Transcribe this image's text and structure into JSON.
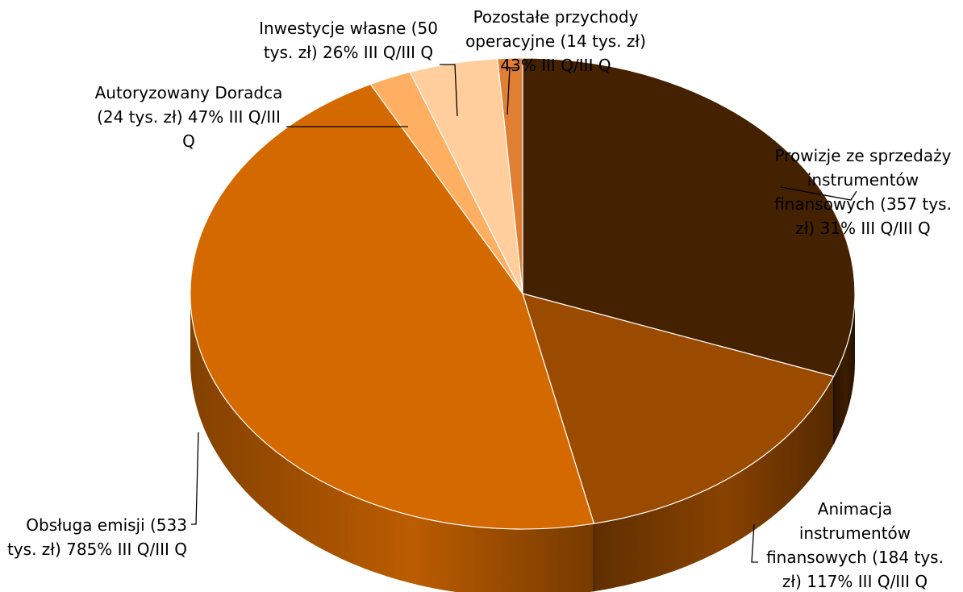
{
  "chart_data": {
    "type": "pie",
    "title": "",
    "style": "3d",
    "start_angle_deg": 0,
    "direction": "clockwise",
    "unit": "tys. zł",
    "slices": [
      {
        "name": "Prowizje ze sprzedaży instrumentów finansowych",
        "value": 357,
        "color": "#442100",
        "label_lines": [
          "Prowizje ze sprzedaży",
          "instrumentów",
          "finansowych (357 tys.",
          "zł) 31%  III Q/III Q"
        ]
      },
      {
        "name": "Animacja instrumentów finansowych",
        "value": 184,
        "color": "#9A4B00",
        "label_lines": [
          "Animacja",
          "instrumentów",
          "finansowych (184 tys.",
          "zł) 117%  III Q/III Q"
        ]
      },
      {
        "name": "Obsługa emisji",
        "value": 533,
        "color": "#D46900",
        "label_lines": [
          "Obsługa emisji (533",
          "tys. zł) 785%  III Q/III Q"
        ]
      },
      {
        "name": "Autoryzowany Doradca",
        "value": 24,
        "color": "#FFAF62",
        "label_lines": [
          "Autoryzowany Doradca",
          "(24 tys. zł) 47%  III Q/III",
          "Q"
        ]
      },
      {
        "name": "Inwestycje własne",
        "value": 50,
        "color": "#FFCE9C",
        "label_lines": [
          "Inwestycje własne (50",
          "tys. zł) 26%  III Q/III Q"
        ]
      },
      {
        "name": "Pozostałe przychody operacyjne",
        "value": 14,
        "color": "#E07F33",
        "label_lines": [
          "Pozostałe przychody",
          "operacyjne (14 tys. zł)",
          "43%  III Q/III Q"
        ]
      }
    ]
  }
}
